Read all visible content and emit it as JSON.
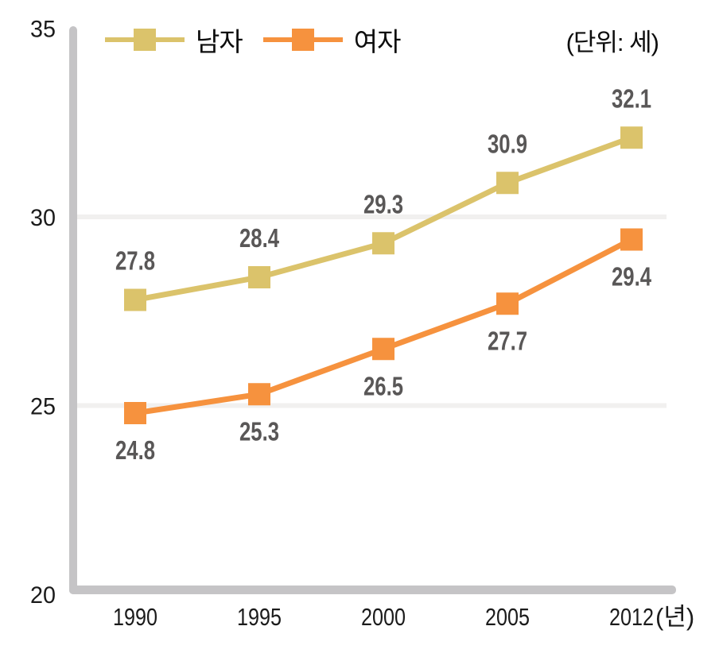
{
  "chart_data": {
    "type": "line",
    "title": "",
    "unit_label": "(단위: 세)",
    "categories": [
      "1990",
      "1995",
      "2000",
      "2005",
      "2012"
    ],
    "x_axis_suffix": "(년)",
    "ylim": [
      20,
      35
    ],
    "yticks": [
      20,
      25,
      30,
      35
    ],
    "gridlines": [
      25,
      30
    ],
    "grid": "horizontal-only",
    "legend_position": "top-left",
    "series": [
      {
        "name": "남자",
        "color": "#dbc36b",
        "values": [
          27.8,
          28.4,
          29.3,
          30.9,
          32.1
        ],
        "label_position": "above"
      },
      {
        "name": "여자",
        "color": "#f6923e",
        "values": [
          24.8,
          25.3,
          26.5,
          27.7,
          29.4
        ],
        "label_position": "below"
      }
    ],
    "colors": {
      "axis": "#c5c4c6",
      "gridline": "#f1f0ef",
      "value_label": "#595757",
      "tick_label": "#1b1b1b"
    }
  }
}
